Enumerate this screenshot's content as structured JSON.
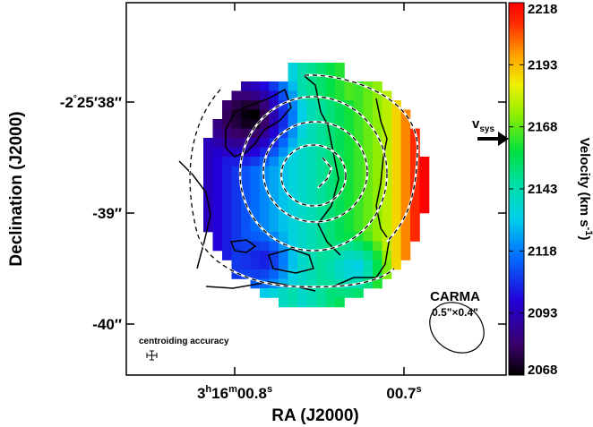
{
  "chart_data": {
    "type": "heatmap",
    "xlabel": "RA (J2000)",
    "ylabel": "Declination (J2000)",
    "x_ticks": [
      {
        "label_main": "3",
        "sup1": "h",
        "mid": "16",
        "sup2": "m",
        "mid2": "00.8",
        "sup3": "s"
      },
      {
        "label_main": "00.7",
        "sup3": "s"
      }
    ],
    "y_ticks": [
      {
        "deg": "-2",
        "min": "25",
        "sec": "38"
      },
      {
        "sec": "-39"
      },
      {
        "sec": "-40"
      }
    ],
    "colorbar": {
      "label": "Velocity (km s",
      "label_sup": "-1",
      "label_end": ")",
      "min": 2068,
      "max": 2218,
      "ticks": [
        "2218",
        "2193",
        "2168",
        "2143",
        "2118",
        "2093",
        "2068"
      ],
      "colormap": "rainbow"
    },
    "vsys": {
      "label": "v",
      "sub": "sys",
      "value": 2160
    },
    "beam": {
      "telescope": "CARMA",
      "size": "0.5\"×0.4\""
    },
    "annotation": "centroiding accuracy",
    "contours": {
      "solid": "velocity contours",
      "dashed": "intensity contours"
    }
  }
}
